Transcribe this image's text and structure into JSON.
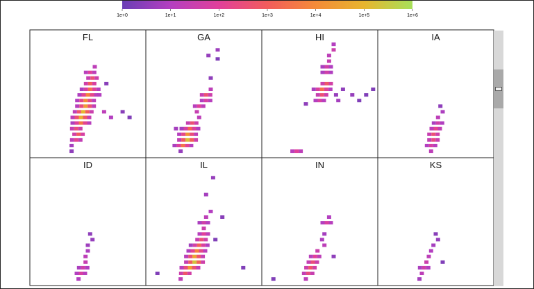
{
  "chart_data": {
    "type": "heatmap",
    "color_scale": {
      "scale": "log",
      "min": 1,
      "max": 1000000,
      "ticks": [
        "1e+0",
        "1e+1",
        "1e+2",
        "1e+3",
        "1e+4",
        "1e+5",
        "1e+6"
      ],
      "colors": [
        "#6a3fb5",
        "#b43fc0",
        "#e0409a",
        "#f25c5c",
        "#f48b38",
        "#e7b52e",
        "#a7e05a"
      ]
    },
    "panels": [
      {
        "title": "FL",
        "cells": [
          [
            0.36,
            0.03,
            0.5
          ],
          [
            0.36,
            0.08,
            0.8
          ],
          [
            0.4,
            0.13,
            2.2
          ],
          [
            0.42,
            0.18,
            3
          ],
          [
            0.4,
            0.23,
            2.5
          ],
          [
            0.44,
            0.28,
            3.6
          ],
          [
            0.44,
            0.33,
            4.8
          ],
          [
            0.46,
            0.38,
            5
          ],
          [
            0.48,
            0.43,
            4.4
          ],
          [
            0.48,
            0.48,
            4
          ],
          [
            0.5,
            0.53,
            3.8
          ],
          [
            0.52,
            0.58,
            3.4
          ],
          [
            0.52,
            0.63,
            3
          ],
          [
            0.54,
            0.68,
            2.6
          ],
          [
            0.52,
            0.73,
            2
          ],
          [
            0.56,
            0.78,
            1.2
          ],
          [
            0.6,
            0.53,
            1
          ],
          [
            0.64,
            0.38,
            1.2
          ],
          [
            0.7,
            0.33,
            1
          ],
          [
            0.8,
            0.38,
            0.4
          ],
          [
            0.86,
            0.33,
            0.3
          ],
          [
            0.66,
            0.63,
            0.4
          ]
        ]
      },
      {
        "title": "GA",
        "cells": [
          [
            0.3,
            0.03,
            0.6
          ],
          [
            0.32,
            0.08,
            3.5
          ],
          [
            0.36,
            0.13,
            5.2
          ],
          [
            0.36,
            0.18,
            4.2
          ],
          [
            0.38,
            0.23,
            3.2
          ],
          [
            0.4,
            0.28,
            2.6
          ],
          [
            0.46,
            0.33,
            1.2
          ],
          [
            0.44,
            0.38,
            1.4
          ],
          [
            0.46,
            0.43,
            2
          ],
          [
            0.52,
            0.48,
            1.8
          ],
          [
            0.52,
            0.53,
            2.6
          ],
          [
            0.56,
            0.58,
            1.2
          ],
          [
            0.56,
            0.68,
            0.5
          ],
          [
            0.54,
            0.88,
            0.6
          ],
          [
            0.62,
            0.93,
            0.7
          ],
          [
            0.62,
            0.85,
            0.3
          ],
          [
            0.26,
            0.23,
            0.8
          ]
        ]
      },
      {
        "title": "HI",
        "cells": [
          [
            0.3,
            0.03,
            2
          ],
          [
            0.38,
            0.45,
            0.5
          ],
          [
            0.5,
            0.48,
            1.8
          ],
          [
            0.52,
            0.53,
            2.6
          ],
          [
            0.52,
            0.58,
            3.4
          ],
          [
            0.56,
            0.63,
            2.8
          ],
          [
            0.64,
            0.53,
            0.6
          ],
          [
            0.66,
            0.48,
            0.8
          ],
          [
            0.7,
            0.58,
            0.5
          ],
          [
            0.78,
            0.53,
            0.6
          ],
          [
            0.84,
            0.48,
            0.3
          ],
          [
            0.9,
            0.53,
            0.3
          ],
          [
            0.96,
            0.58,
            0.3
          ],
          [
            0.56,
            0.73,
            1.6
          ],
          [
            0.56,
            0.78,
            1.6
          ],
          [
            0.58,
            0.83,
            1.4
          ],
          [
            0.58,
            0.88,
            1.2
          ],
          [
            0.62,
            0.93,
            1.5
          ],
          [
            0.62,
            0.98,
            1
          ]
        ]
      },
      {
        "title": "IA",
        "cells": [
          [
            0.46,
            0.03,
            1.2
          ],
          [
            0.46,
            0.08,
            1.8
          ],
          [
            0.48,
            0.13,
            2.4
          ],
          [
            0.48,
            0.18,
            2.6
          ],
          [
            0.5,
            0.23,
            2.2
          ],
          [
            0.52,
            0.28,
            1.6
          ],
          [
            0.52,
            0.33,
            1.2
          ],
          [
            0.56,
            0.38,
            0.9
          ],
          [
            0.54,
            0.43,
            0.5
          ]
        ]
      },
      {
        "title": "ID",
        "cells": [
          [
            0.42,
            0.03,
            1
          ],
          [
            0.44,
            0.08,
            1.8
          ],
          [
            0.46,
            0.13,
            1.6
          ],
          [
            0.48,
            0.18,
            1.4
          ],
          [
            0.48,
            0.23,
            1.2
          ],
          [
            0.5,
            0.28,
            0.9
          ],
          [
            0.5,
            0.33,
            0.7
          ],
          [
            0.54,
            0.38,
            0.6
          ],
          [
            0.52,
            0.43,
            0.5
          ]
        ]
      },
      {
        "title": "IL",
        "cells": [
          [
            0.1,
            0.08,
            0.3
          ],
          [
            0.3,
            0.03,
            1.2
          ],
          [
            0.34,
            0.08,
            2.8
          ],
          [
            0.38,
            0.13,
            4.4
          ],
          [
            0.42,
            0.18,
            5.3
          ],
          [
            0.42,
            0.23,
            4.6
          ],
          [
            0.44,
            0.28,
            3.8
          ],
          [
            0.46,
            0.33,
            3.1
          ],
          [
            0.48,
            0.38,
            2.6
          ],
          [
            0.5,
            0.43,
            2
          ],
          [
            0.5,
            0.48,
            1.5
          ],
          [
            0.5,
            0.53,
            1.6
          ],
          [
            0.52,
            0.58,
            1.2
          ],
          [
            0.56,
            0.63,
            1
          ],
          [
            0.66,
            0.58,
            0.4
          ],
          [
            0.6,
            0.38,
            0.3
          ],
          [
            0.84,
            0.13,
            0.3
          ],
          [
            0.52,
            0.78,
            0.8
          ],
          [
            0.58,
            0.93,
            0.6
          ]
        ]
      },
      {
        "title": "IN",
        "cells": [
          [
            0.1,
            0.03,
            0.3
          ],
          [
            0.38,
            0.03,
            1.2
          ],
          [
            0.4,
            0.08,
            2.4
          ],
          [
            0.42,
            0.13,
            2.8
          ],
          [
            0.44,
            0.18,
            2.5
          ],
          [
            0.46,
            0.23,
            2
          ],
          [
            0.48,
            0.28,
            1.5
          ],
          [
            0.54,
            0.33,
            1.2
          ],
          [
            0.52,
            0.38,
            0.9
          ],
          [
            0.62,
            0.23,
            0.5
          ],
          [
            0.56,
            0.53,
            1.8
          ],
          [
            0.58,
            0.58,
            1
          ],
          [
            0.54,
            0.43,
            0.8
          ]
        ]
      },
      {
        "title": "KS",
        "cells": [
          [
            0.36,
            0.03,
            0.8
          ],
          [
            0.38,
            0.08,
            1.2
          ],
          [
            0.4,
            0.13,
            1.6
          ],
          [
            0.42,
            0.18,
            1.5
          ],
          [
            0.44,
            0.23,
            1.2
          ],
          [
            0.46,
            0.28,
            1
          ],
          [
            0.48,
            0.33,
            0.8
          ],
          [
            0.52,
            0.38,
            0.6
          ],
          [
            0.5,
            0.43,
            0.4
          ],
          [
            0.56,
            0.18,
            0.3
          ]
        ]
      }
    ]
  }
}
